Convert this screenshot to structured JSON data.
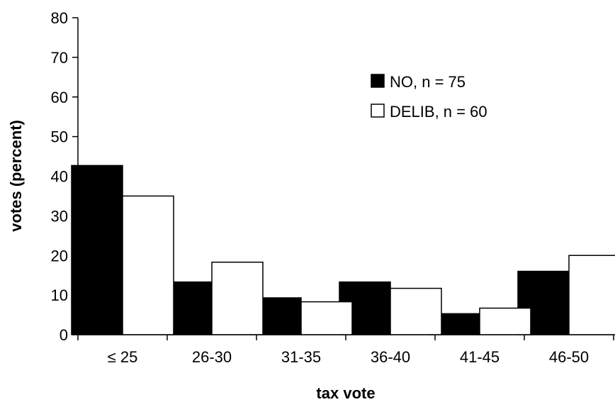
{
  "chart_data": {
    "type": "bar",
    "title": "",
    "xlabel": "tax vote",
    "ylabel": "votes (percent)",
    "categories": [
      "≤ 25",
      "26-30",
      "31-35",
      "36-40",
      "41-45",
      "46-50"
    ],
    "ylim": [
      0,
      80
    ],
    "yticks": [
      0,
      10,
      20,
      30,
      40,
      50,
      60,
      70,
      80
    ],
    "grid": false,
    "legend_position": "top-right",
    "series": [
      {
        "name": "NO, n = 75",
        "color": "#000000",
        "values": [
          42.7,
          13.3,
          9.3,
          13.3,
          5.3,
          16.0
        ]
      },
      {
        "name": "DELIB, n = 60",
        "color": "#ffffff",
        "values": [
          35.0,
          18.3,
          8.3,
          11.7,
          6.7,
          20.0
        ]
      }
    ]
  }
}
